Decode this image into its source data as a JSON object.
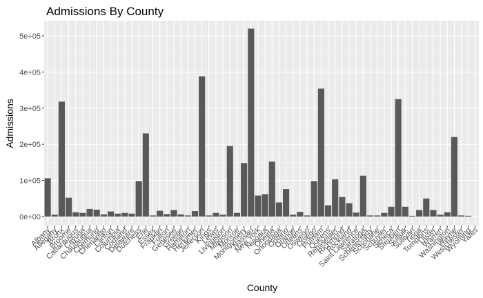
{
  "chart_data": {
    "type": "bar",
    "title": "Admissions By County",
    "xlabel": "County",
    "ylabel": "Admissions",
    "ylim": [
      -25000,
      542000
    ],
    "yticks": [
      0,
      100000,
      200000,
      300000,
      400000,
      500000
    ],
    "ytick_labels": [
      "0e+00",
      "1e+05",
      "2e+05",
      "3e+05",
      "4e+05",
      "5e+05"
    ],
    "grid": true,
    "colors": {
      "bar": "#595959",
      "panel": "#ebebeb",
      "grid_major": "#ffffff",
      "grid_minor": "#f5f5f5"
    },
    "categories": [
      "Albany",
      "Allegany",
      "Bronx",
      "Broome",
      "Cattaraugus",
      "Cayuga",
      "Chautauqua",
      "Chemung",
      "Chenango",
      "Clinton",
      "Columbia",
      "Cortland",
      "Delaware",
      "Dutchess",
      "Erie",
      "Essex",
      "Franklin",
      "Fulton",
      "Genesee",
      "Greene",
      "Hamilton",
      "Herkimer",
      "Jefferson",
      "Kings",
      "Lewis",
      "Livingston",
      "Madison",
      "Monroe",
      "Montgomery",
      "Nassau",
      "New York",
      "Niagara",
      "Oneida",
      "Onondaga",
      "Ontario",
      "Orange",
      "Orleans",
      "Oswego",
      "Otsego",
      "Putnam",
      "Queens",
      "Rensselaer",
      "Richmond",
      "Rockland",
      "Saint Lawrence",
      "Saratoga",
      "Schenectady",
      "Schoharie",
      "Schuyler",
      "Seneca",
      "Steuben",
      "Suffolk",
      "Sullivan",
      "Tioga",
      "Tompkins",
      "Ulster",
      "Warren",
      "Washington",
      "Wayne",
      "Westchester",
      "Wyoming",
      "Yates"
    ],
    "values": [
      106000,
      5000,
      318000,
      52000,
      12000,
      10000,
      21000,
      19000,
      6000,
      14000,
      8000,
      10000,
      8000,
      98000,
      230000,
      3000,
      16000,
      7000,
      18000,
      6000,
      3000,
      15000,
      388000,
      3000,
      10000,
      5000,
      195000,
      10000,
      148000,
      520000,
      58000,
      62000,
      152000,
      39000,
      76000,
      5000,
      13000,
      3000,
      98000,
      354000,
      31000,
      103000,
      54000,
      37000,
      11000,
      113000,
      3000,
      3000,
      10000,
      27000,
      325000,
      27000,
      2000,
      18000,
      50000,
      18000,
      5000,
      12000,
      220000,
      3000,
      2000,
      0
    ]
  }
}
